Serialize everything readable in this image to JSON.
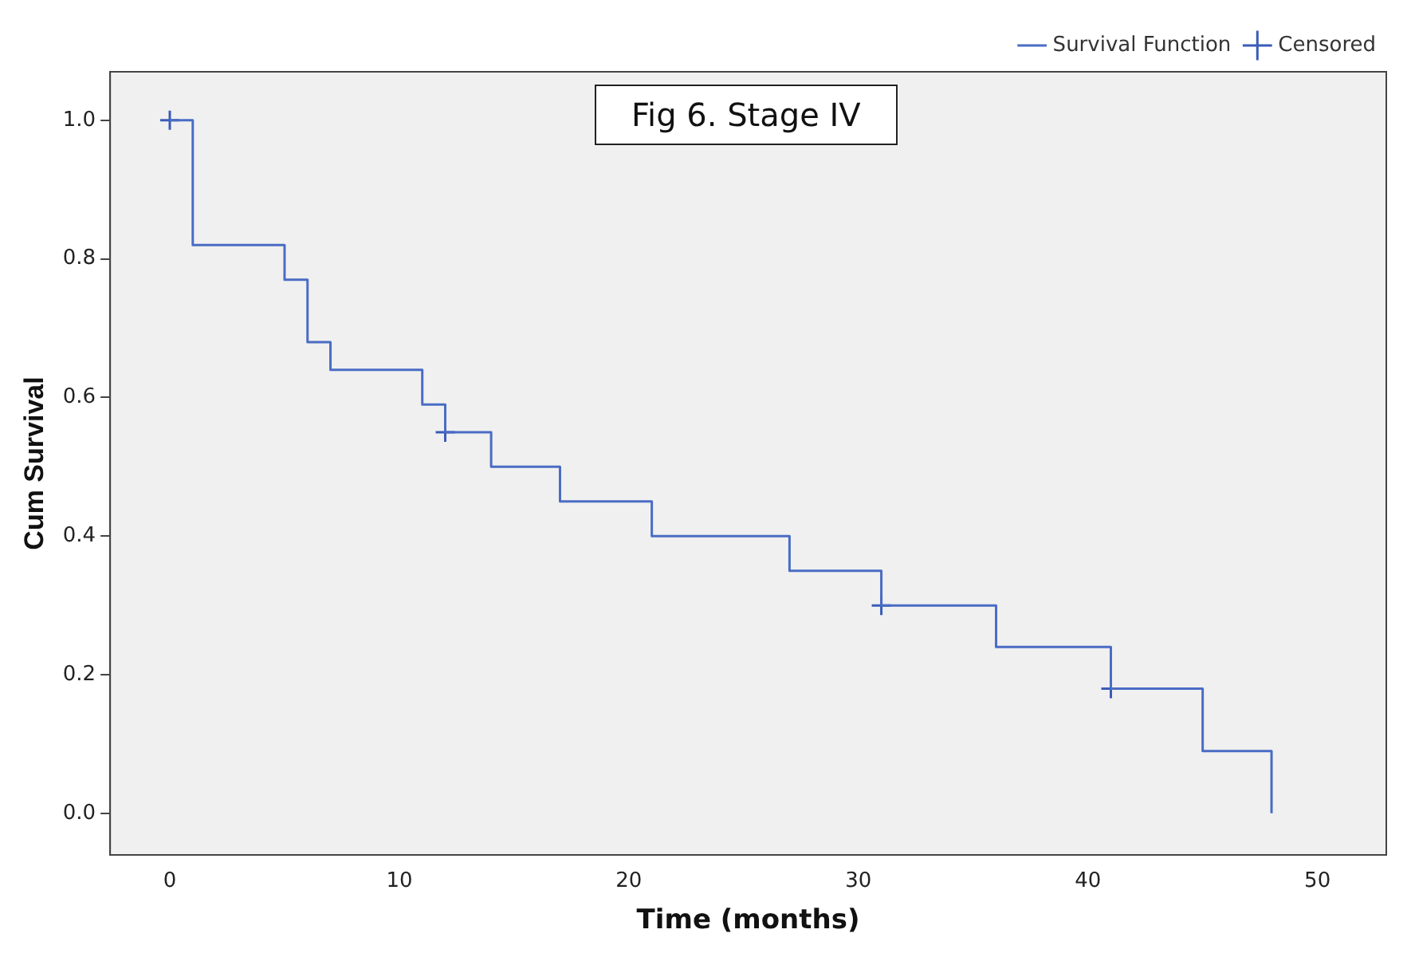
{
  "chart_data": {
    "type": "step",
    "title": "Fig 6. Stage IV",
    "xlabel": "Time (months)",
    "ylabel": "Cum Survival",
    "series": [
      {
        "name": "Survival Function",
        "color": "#4a6cc4",
        "x": [
          0,
          1,
          5,
          6,
          7,
          11,
          12,
          14,
          17,
          21,
          27,
          31,
          36,
          41,
          45,
          48
        ],
        "values": [
          1.0,
          0.82,
          0.77,
          0.68,
          0.64,
          0.59,
          0.55,
          0.5,
          0.45,
          0.4,
          0.35,
          0.3,
          0.24,
          0.18,
          0.09,
          0.0
        ]
      },
      {
        "name": "Censored",
        "type": "scatter",
        "marker": "cross",
        "color": "#3a5cb8",
        "x": [
          0,
          12,
          31,
          41
        ],
        "values": [
          1.0,
          0.55,
          0.3,
          0.18
        ]
      }
    ],
    "xlim": [
      -2.6,
      53
    ],
    "xticks": [
      0,
      10,
      20,
      30,
      40,
      50
    ],
    "ylim": [
      -0.06,
      1.07
    ],
    "yticks": [
      {
        "value": 0,
        "label": "0.0"
      },
      {
        "value": 0.2,
        "label": "0.2"
      },
      {
        "value": 0.4,
        "label": "0.4"
      },
      {
        "value": 0.6,
        "label": "0.6"
      },
      {
        "value": 0.8,
        "label": "0.8"
      },
      {
        "value": 1,
        "label": "1.0"
      }
    ],
    "grid": false,
    "legend": "top right"
  }
}
